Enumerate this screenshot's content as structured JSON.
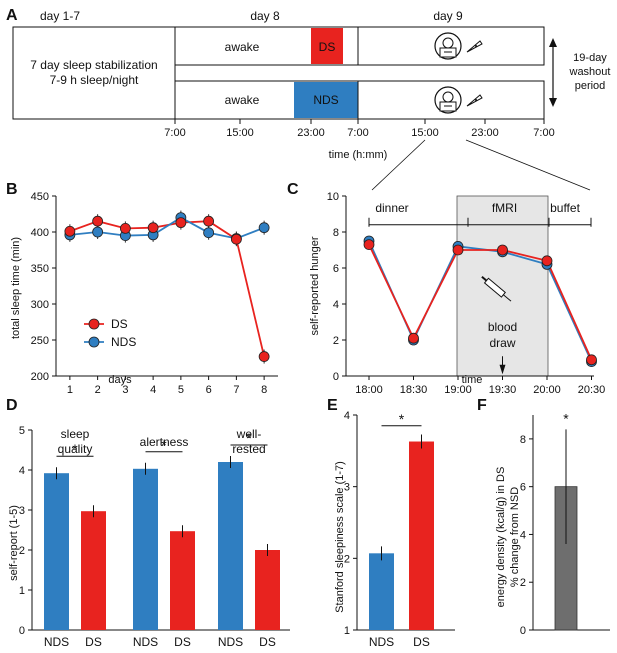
{
  "colors": {
    "ds": "#e8231f",
    "nds": "#2f7ec1",
    "gray": "#6e6e6e",
    "fmri_bg": "#e6e6e6"
  },
  "panel_labels": {
    "a": "A",
    "b": "B",
    "c": "C",
    "d": "D",
    "e": "E",
    "f": "F"
  },
  "timeline": {
    "day_labels": [
      "day 1-7",
      "day 8",
      "day 9"
    ],
    "stabilization": [
      "7 day sleep stabilization",
      "7-9 h sleep/night"
    ],
    "awake": "awake",
    "ds": "DS",
    "nds": "NDS",
    "time_ticks": [
      "7:00",
      "15:00",
      "23:00",
      "7:00",
      "15:00",
      "23:00",
      "7:00"
    ],
    "time_axis_label": "time (h:mm)",
    "washout": [
      "19-day",
      "washout",
      "period"
    ],
    "icons": [
      "mri-scanner-icon",
      "pizza-icon"
    ]
  },
  "chart_data": [
    {
      "panel": "B",
      "type": "line",
      "x": [
        1,
        2,
        3,
        4,
        5,
        6,
        7,
        8
      ],
      "series": [
        {
          "name": "DS",
          "values": [
            401,
            415,
            405,
            406,
            413,
            415,
            390,
            227
          ]
        },
        {
          "name": "NDS",
          "values": [
            396,
            400,
            395,
            396,
            420,
            399,
            391,
            406
          ]
        }
      ],
      "xlabel": "days",
      "ylabel": "total sleep time (min)",
      "ylim": [
        200,
        450
      ],
      "yticks": [
        200,
        250,
        300,
        350,
        400,
        450
      ],
      "legend": "bottom-left"
    },
    {
      "panel": "C",
      "type": "line",
      "categories": [
        "18:00",
        "18:30",
        "19:00",
        "19:30",
        "20:00",
        "20:30"
      ],
      "series": [
        {
          "name": "DS",
          "values": [
            7.3,
            2.1,
            7.0,
            7.0,
            6.4,
            0.9
          ]
        },
        {
          "name": "NDS",
          "values": [
            7.5,
            2.0,
            7.2,
            6.9,
            6.2,
            0.8
          ]
        }
      ],
      "xlabel": "time",
      "ylabel": "self-reported hunger",
      "ylim": [
        0,
        10
      ],
      "yticks": [
        0,
        2,
        4,
        6,
        8,
        10
      ],
      "phases": [
        "dinner",
        "fMRI",
        "buffet"
      ],
      "annotation": [
        "blood",
        "draw"
      ]
    },
    {
      "panel": "D",
      "type": "bar",
      "groups": [
        {
          "title": [
            "sleep",
            "quality"
          ],
          "NDS": 3.92,
          "DS": 2.97
        },
        {
          "title": [
            "alertness"
          ],
          "NDS": 4.03,
          "DS": 2.47
        },
        {
          "title": [
            "well-",
            "rested"
          ],
          "NDS": 4.2,
          "DS": 2.0
        }
      ],
      "categories": [
        "NDS",
        "DS"
      ],
      "ylabel": "self-report (1-5)",
      "ylim": [
        0,
        5
      ],
      "yticks": [
        0,
        1,
        2,
        3,
        4,
        5
      ],
      "significance": "*"
    },
    {
      "panel": "E",
      "type": "bar",
      "categories": [
        "NDS",
        "DS"
      ],
      "values": [
        2.07,
        3.63
      ],
      "ylabel": "Stanford sleepiness scale (1-7)",
      "ylim": [
        1,
        4
      ],
      "yticks": [
        1,
        2,
        3,
        4
      ],
      "significance": "*"
    },
    {
      "panel": "F",
      "type": "bar",
      "values": [
        6.0
      ],
      "error": [
        3.6,
        8.4
      ],
      "ylabel": [
        "energy density (kcal/g) in DS",
        "% change from NSD"
      ],
      "ylim": [
        0,
        9
      ],
      "yticks": [
        0,
        2,
        4,
        6,
        8
      ],
      "significance": "*"
    }
  ]
}
